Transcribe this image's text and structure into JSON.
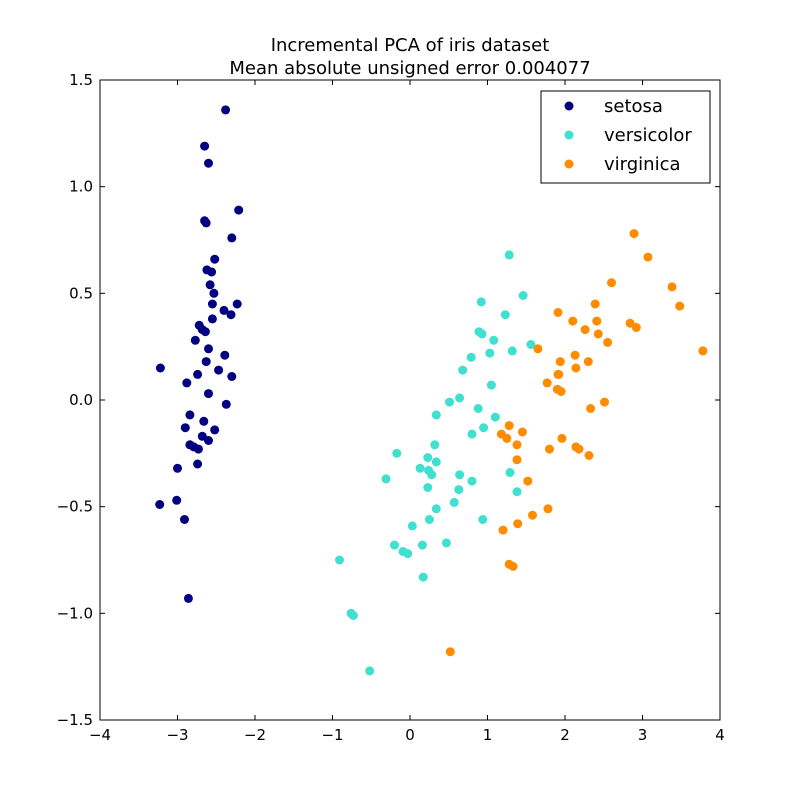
{
  "chart_data": {
    "type": "scatter",
    "title": "Incremental PCA of iris dataset",
    "subtitle": "Mean absolute unsigned error 0.004077",
    "xlim": [
      -4,
      4
    ],
    "ylim": [
      -1.5,
      1.5
    ],
    "x_ticks": [
      -4,
      -3,
      -2,
      -1,
      0,
      1,
      2,
      3,
      4
    ],
    "y_ticks": [
      -1.5,
      -1.0,
      -0.5,
      0.0,
      0.5,
      1.0,
      1.5
    ],
    "x_tick_labels": [
      "−4",
      "−3",
      "−2",
      "−1",
      "0",
      "1",
      "2",
      "3",
      "4"
    ],
    "y_tick_labels": [
      "−1.5",
      "−1.0",
      "−0.5",
      "0.0",
      "0.5",
      "1.0",
      "1.5"
    ],
    "grid": false,
    "legend_position": "top-right",
    "series": [
      {
        "name": "setosa",
        "color": "#000080",
        "points": [
          [
            -2.38,
            1.36
          ],
          [
            -2.65,
            1.19
          ],
          [
            -2.6,
            1.11
          ],
          [
            -2.21,
            0.89
          ],
          [
            -2.65,
            0.84
          ],
          [
            -2.63,
            0.83
          ],
          [
            -2.3,
            0.76
          ],
          [
            -2.52,
            0.66
          ],
          [
            -2.62,
            0.61
          ],
          [
            -2.56,
            0.6
          ],
          [
            -2.58,
            0.54
          ],
          [
            -2.53,
            0.5
          ],
          [
            -2.55,
            0.45
          ],
          [
            -2.23,
            0.45
          ],
          [
            -2.4,
            0.42
          ],
          [
            -2.31,
            0.4
          ],
          [
            -2.55,
            0.38
          ],
          [
            -2.72,
            0.35
          ],
          [
            -2.68,
            0.33
          ],
          [
            -2.64,
            0.32
          ],
          [
            -2.77,
            0.28
          ],
          [
            -2.6,
            0.24
          ],
          [
            -2.39,
            0.21
          ],
          [
            -2.63,
            0.18
          ],
          [
            -2.47,
            0.14
          ],
          [
            -3.22,
            0.15
          ],
          [
            -2.74,
            0.12
          ],
          [
            -2.3,
            0.11
          ],
          [
            -2.88,
            0.08
          ],
          [
            -2.6,
            0.03
          ],
          [
            -2.37,
            -0.02
          ],
          [
            -2.84,
            -0.07
          ],
          [
            -2.66,
            -0.1
          ],
          [
            -2.9,
            -0.13
          ],
          [
            -2.52,
            -0.14
          ],
          [
            -2.68,
            -0.17
          ],
          [
            -2.6,
            -0.19
          ],
          [
            -2.84,
            -0.21
          ],
          [
            -2.79,
            -0.22
          ],
          [
            -2.73,
            -0.23
          ],
          [
            -2.74,
            -0.3
          ],
          [
            -3.0,
            -0.32
          ],
          [
            -3.01,
            -0.47
          ],
          [
            -3.23,
            -0.49
          ],
          [
            -2.91,
            -0.56
          ],
          [
            -2.86,
            -0.93
          ]
        ]
      },
      {
        "name": "versicolor",
        "color": "#40e0d0",
        "points": [
          [
            1.28,
            0.68
          ],
          [
            1.46,
            0.49
          ],
          [
            0.92,
            0.46
          ],
          [
            1.23,
            0.4
          ],
          [
            0.89,
            0.32
          ],
          [
            0.93,
            0.31
          ],
          [
            1.08,
            0.28
          ],
          [
            1.56,
            0.26
          ],
          [
            1.32,
            0.23
          ],
          [
            1.03,
            0.22
          ],
          [
            0.79,
            0.2
          ],
          [
            0.68,
            0.14
          ],
          [
            1.05,
            0.07
          ],
          [
            0.64,
            0.01
          ],
          [
            0.51,
            -0.01
          ],
          [
            0.88,
            -0.04
          ],
          [
            0.34,
            -0.07
          ],
          [
            1.1,
            -0.08
          ],
          [
            0.95,
            -0.13
          ],
          [
            0.8,
            -0.16
          ],
          [
            0.32,
            -0.21
          ],
          [
            -0.17,
            -0.25
          ],
          [
            0.23,
            -0.27
          ],
          [
            0.34,
            -0.29
          ],
          [
            0.13,
            -0.32
          ],
          [
            0.24,
            -0.33
          ],
          [
            0.28,
            -0.35
          ],
          [
            0.64,
            -0.35
          ],
          [
            1.29,
            -0.34
          ],
          [
            -0.31,
            -0.37
          ],
          [
            0.8,
            -0.38
          ],
          [
            0.23,
            -0.41
          ],
          [
            0.63,
            -0.42
          ],
          [
            1.38,
            -0.43
          ],
          [
            0.57,
            -0.48
          ],
          [
            0.34,
            -0.51
          ],
          [
            0.25,
            -0.56
          ],
          [
            0.94,
            -0.56
          ],
          [
            0.03,
            -0.59
          ],
          [
            0.47,
            -0.67
          ],
          [
            0.16,
            -0.68
          ],
          [
            -0.2,
            -0.68
          ],
          [
            -0.09,
            -0.71
          ],
          [
            -0.03,
            -0.72
          ],
          [
            0.17,
            -0.83
          ],
          [
            -0.91,
            -0.75
          ],
          [
            -0.76,
            -1.0
          ],
          [
            -0.73,
            -1.01
          ],
          [
            -0.52,
            -1.27
          ]
        ]
      },
      {
        "name": "virginica",
        "color": "#ff8c00",
        "points": [
          [
            2.89,
            0.78
          ],
          [
            3.07,
            0.67
          ],
          [
            2.6,
            0.55
          ],
          [
            3.38,
            0.53
          ],
          [
            2.39,
            0.45
          ],
          [
            3.48,
            0.44
          ],
          [
            1.91,
            0.41
          ],
          [
            2.41,
            0.37
          ],
          [
            2.1,
            0.37
          ],
          [
            2.26,
            0.33
          ],
          [
            2.84,
            0.36
          ],
          [
            2.92,
            0.34
          ],
          [
            2.43,
            0.31
          ],
          [
            2.55,
            0.27
          ],
          [
            1.65,
            0.24
          ],
          [
            3.78,
            0.23
          ],
          [
            2.13,
            0.21
          ],
          [
            1.94,
            0.18
          ],
          [
            2.3,
            0.18
          ],
          [
            2.14,
            0.15
          ],
          [
            1.91,
            0.12
          ],
          [
            1.92,
            0.12
          ],
          [
            1.77,
            0.08
          ],
          [
            1.9,
            0.05
          ],
          [
            1.95,
            0.04
          ],
          [
            2.51,
            -0.01
          ],
          [
            2.33,
            -0.04
          ],
          [
            1.28,
            -0.12
          ],
          [
            1.45,
            -0.15
          ],
          [
            1.18,
            -0.16
          ],
          [
            1.25,
            -0.18
          ],
          [
            1.96,
            -0.18
          ],
          [
            1.38,
            -0.21
          ],
          [
            2.14,
            -0.22
          ],
          [
            2.18,
            -0.23
          ],
          [
            1.8,
            -0.23
          ],
          [
            2.31,
            -0.26
          ],
          [
            1.38,
            -0.28
          ],
          [
            1.52,
            -0.38
          ],
          [
            1.78,
            -0.51
          ],
          [
            1.58,
            -0.54
          ],
          [
            1.39,
            -0.58
          ],
          [
            1.2,
            -0.61
          ],
          [
            1.28,
            -0.77
          ],
          [
            1.33,
            -0.78
          ],
          [
            0.52,
            -1.18
          ]
        ]
      }
    ]
  }
}
